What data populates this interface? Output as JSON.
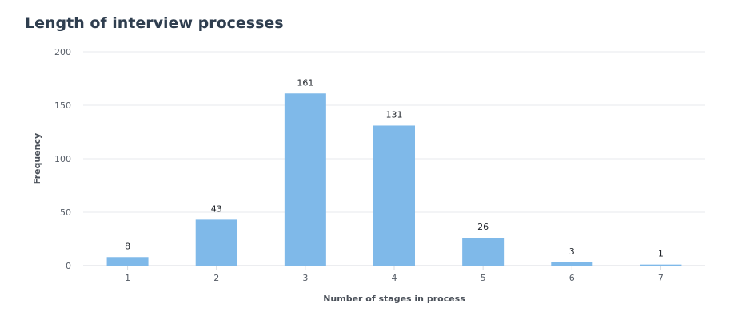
{
  "chart_data": {
    "type": "bar",
    "title": "Length of interview processes",
    "xlabel": "Number of stages in process",
    "ylabel": "Frequency",
    "categories": [
      "1",
      "2",
      "3",
      "4",
      "5",
      "6",
      "7"
    ],
    "values": [
      8,
      43,
      161,
      131,
      26,
      3,
      1
    ],
    "ylim": [
      0,
      200
    ],
    "yticks": [
      0,
      50,
      100,
      150,
      200
    ],
    "grid": true,
    "legend": "none",
    "colors": {
      "bar": "#7fb9e9",
      "grid": "#e7e9ec",
      "title": "#2f3e4f"
    }
  }
}
